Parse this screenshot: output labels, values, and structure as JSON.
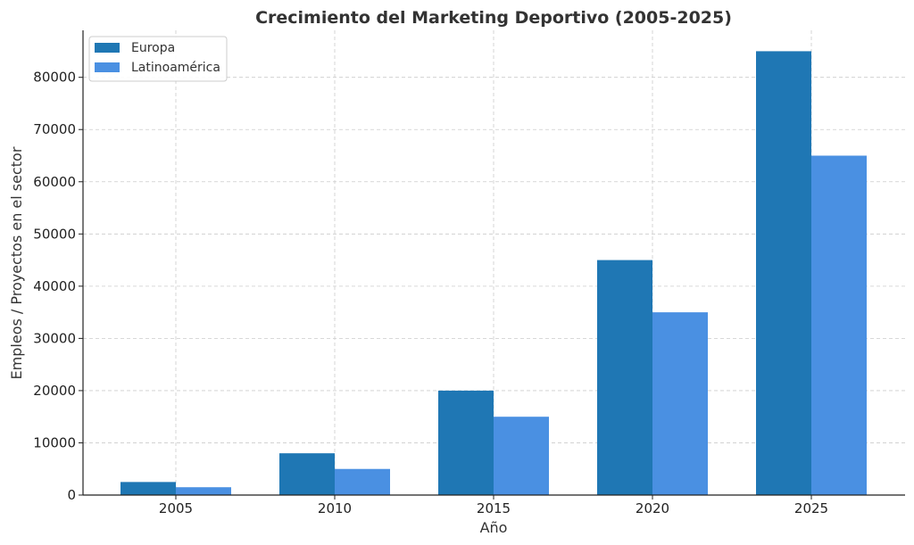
{
  "chart_data": {
    "type": "bar",
    "title": "Crecimiento del Marketing Deportivo (2005-2025)",
    "xlabel": "Año",
    "ylabel": "Empleos / Proyectos en el sector",
    "categories": [
      "2005",
      "2010",
      "2015",
      "2020",
      "2025"
    ],
    "series": [
      {
        "name": "Europa",
        "color": "#1f77b4",
        "values": [
          2500,
          8000,
          20000,
          45000,
          85000
        ]
      },
      {
        "name": "Latinoamérica",
        "color": "#4a90e2",
        "values": [
          1500,
          5000,
          15000,
          35000,
          65000
        ]
      }
    ],
    "ylim": [
      0,
      89000
    ],
    "yticks": [
      0,
      10000,
      20000,
      30000,
      40000,
      50000,
      60000,
      70000,
      80000
    ],
    "grid": true,
    "legend_position": "top-left"
  }
}
